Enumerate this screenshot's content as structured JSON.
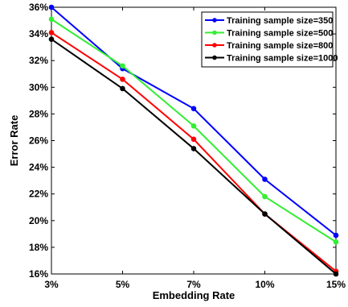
{
  "chart_data": {
    "type": "line",
    "categories": [
      "3%",
      "5%",
      "7%",
      "10%",
      "15%"
    ],
    "xlabel": "Embedding Rate",
    "ylabel": "Error Rate",
    "yticks": [
      "16%",
      "18%",
      "20%",
      "22%",
      "24%",
      "26%",
      "28%",
      "30%",
      "32%",
      "34%",
      "36%"
    ],
    "ylim": [
      16,
      36
    ],
    "grid": false,
    "legend_position": "top-right",
    "series": [
      {
        "name": "Training sample size=350",
        "color": "#0000ff",
        "values": [
          36.0,
          31.4,
          28.4,
          23.1,
          18.9
        ]
      },
      {
        "name": "Training sample size=500",
        "color": "#33ee33",
        "values": [
          35.1,
          31.6,
          27.1,
          21.8,
          18.4
        ]
      },
      {
        "name": "Training sample size=800",
        "color": "#ff0000",
        "values": [
          34.1,
          30.6,
          26.1,
          20.5,
          16.2
        ]
      },
      {
        "name": "Training sample size=1000",
        "color": "#000000",
        "values": [
          33.6,
          29.9,
          25.4,
          20.5,
          16.0
        ]
      }
    ]
  }
}
